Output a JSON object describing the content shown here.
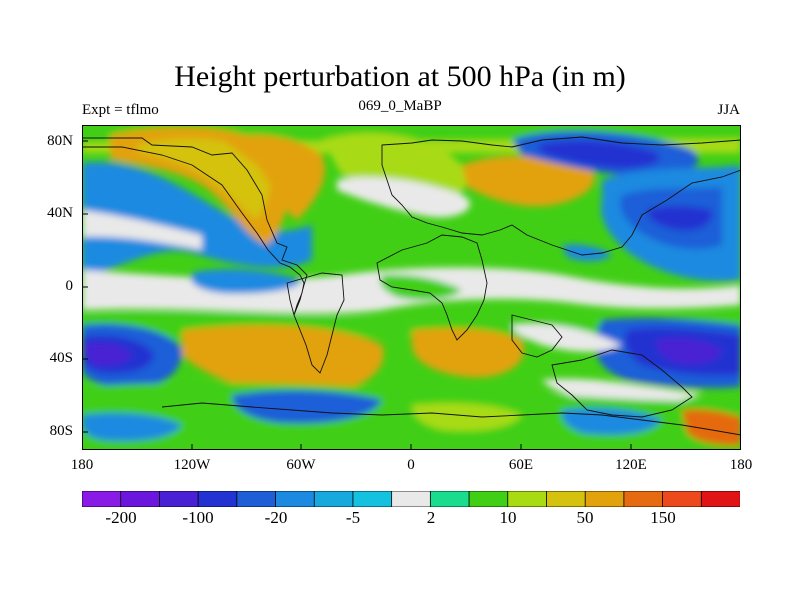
{
  "figure": {
    "title": "Height perturbation at 500 hPa (in m)",
    "left_label": "Expt = tflmo",
    "center_label": "069_0_MaBP",
    "right_label": "JJA"
  },
  "map": {
    "projection": "cylindrical-equidistant",
    "lon_range": [
      -180,
      180
    ],
    "lat_range": [
      -90,
      90
    ],
    "y_ticks": [
      "80N",
      "40N",
      "0",
      "40S",
      "80S"
    ],
    "x_ticks": [
      "180",
      "120W",
      "60W",
      "0",
      "60E",
      "120E",
      "180"
    ]
  },
  "colorbar": {
    "colors": [
      "#8a1ae6",
      "#6b16dc",
      "#4a20d4",
      "#2233d1",
      "#1e5fd8",
      "#1c8ae0",
      "#17a9de",
      "#14c2e0",
      "#e9e9e9",
      "#19dc8c",
      "#41cf16",
      "#a8db12",
      "#d4c20e",
      "#e2a20c",
      "#e56a10",
      "#ec4a1d",
      "#e01414"
    ],
    "labels": [
      "-200",
      "-100",
      "-20",
      "-5",
      "2",
      "10",
      "50",
      "150"
    ]
  },
  "chart_data": {
    "type": "heatmap",
    "title": "Height perturbation at 500 hPa (in m)",
    "subtitle": "069_0_MaBP",
    "left_annotation": "Expt = tflmo",
    "right_annotation": "JJA",
    "variable": "500 hPa geopotential height perturbation",
    "units": "m",
    "x_range": [
      -180,
      180
    ],
    "y_range": [
      -90,
      90
    ],
    "contour_levels": [
      "-200",
      "-100",
      "-20",
      "-5",
      "2",
      "10",
      "50",
      "150"
    ]
  }
}
